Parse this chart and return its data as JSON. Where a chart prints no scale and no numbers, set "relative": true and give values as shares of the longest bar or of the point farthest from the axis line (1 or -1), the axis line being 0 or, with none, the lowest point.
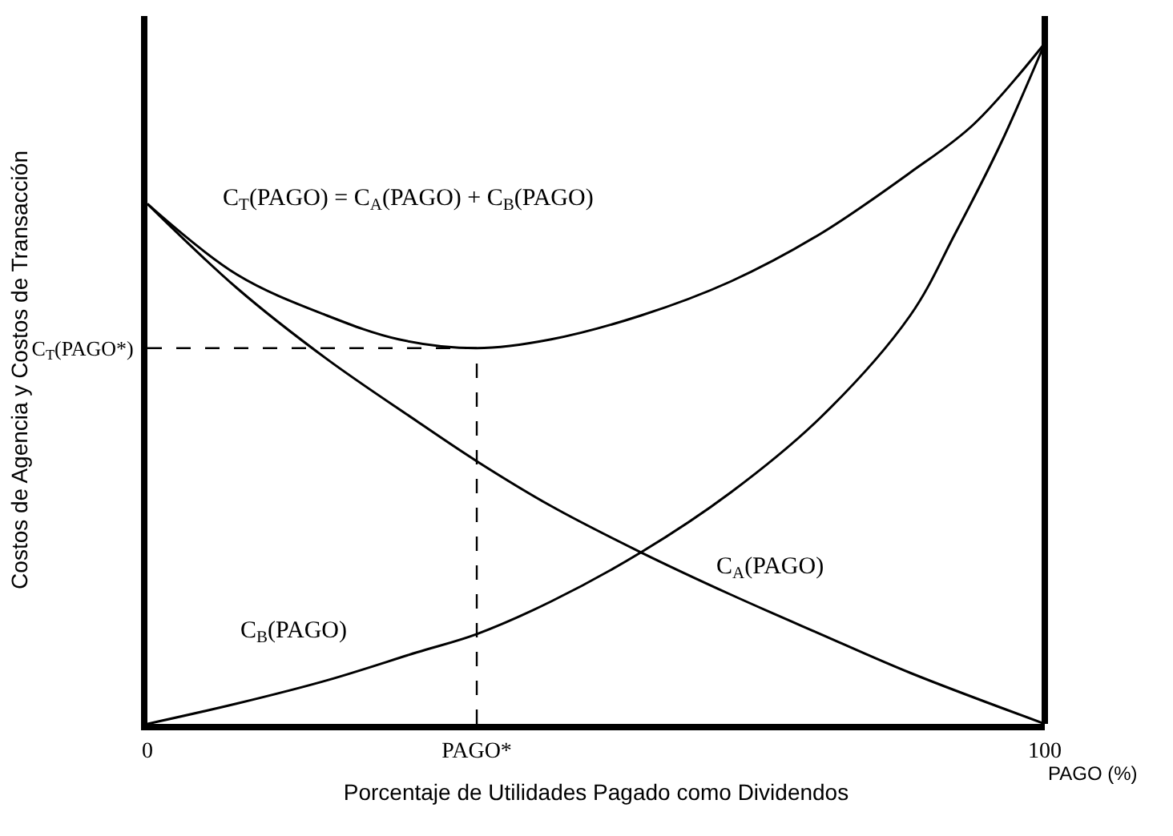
{
  "chart_data": {
    "type": "line",
    "relative": true,
    "xlabel": "Porcentaje de Utilidades Pagado como Dividendos",
    "ylabel": "Costos de Agencia y Costos de Transacción",
    "xlim": [
      0,
      100
    ],
    "xticks": [
      0,
      100
    ],
    "tick_labels": "x",
    "marker": "none",
    "line_style": "solid",
    "series": [
      {
        "color": "#000000",
        "x": [
          0,
          10,
          20,
          28,
          36.7,
          45,
          55,
          65,
          75,
          85,
          92,
          100
        ],
        "values": [
          0.764,
          0.66,
          0.6,
          0.565,
          0.552,
          0.565,
          0.6,
          0.65,
          0.72,
          0.81,
          0.88,
          1
        ]
      },
      {
        "color": "#000000",
        "x": [
          0,
          10,
          20,
          30,
          36.7,
          45,
          55,
          65,
          75,
          85,
          100
        ],
        "values": [
          0.764,
          0.64,
          0.536,
          0.445,
          0.386,
          0.32,
          0.252,
          0.19,
          0.132,
          0.075,
          0
        ]
      },
      {
        "color": "#000000",
        "x": [
          0,
          10,
          20,
          30,
          36.7,
          45,
          55,
          65,
          75,
          85,
          90,
          95,
          100
        ],
        "values": [
          0,
          0.03,
          0.064,
          0.105,
          0.132,
          0.18,
          0.252,
          0.34,
          0.45,
          0.6,
          0.72,
          0.85,
          1
        ]
      }
    ],
    "ref_lines": [
      {
        "axis": "x",
        "value": 36.7,
        "label": "PAGO*",
        "line_style": "dashed"
      },
      {
        "axis": "y",
        "value": 0.552,
        "label": "C$_{T}$(PAGO*)",
        "line_style": "dashed"
      }
    ],
    "annotations": [
      "C$_{T}$(PAGO) = C$_{A}$(PAGO) + C$_{B}$(PAGO)",
      "C$_{A}$(PAGO)",
      "C$_{B}$(PAGO)",
      "PAGO (%)"
    ]
  }
}
